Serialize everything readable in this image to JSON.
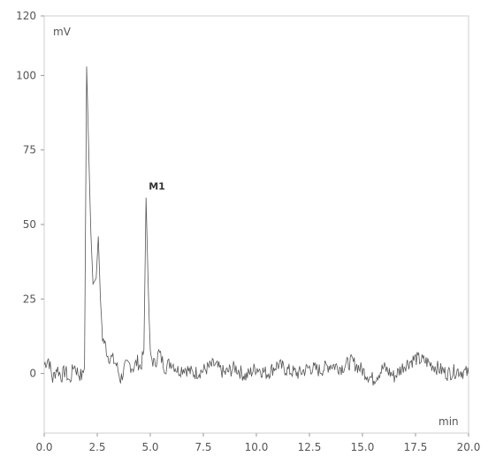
{
  "chart_data": {
    "type": "line",
    "ylabel": "mV",
    "xlabel": "min",
    "xlim": [
      0,
      20
    ],
    "ylim": [
      -20,
      120
    ],
    "x_ticks": [
      "0.0",
      "2.5",
      "5.0",
      "7.5",
      "10.0",
      "12.5",
      "15.0",
      "17.5",
      "20.0"
    ],
    "y_ticks": [
      "0",
      "25",
      "50",
      "75",
      "100",
      "120"
    ],
    "grid": false,
    "line_color": "#555555",
    "frame_color": "#cfcfcf",
    "annotations": [
      {
        "text": "M1",
        "x": 4.8,
        "y": 60
      }
    ],
    "series": [
      {
        "points": [
          [
            0.0,
            3
          ],
          [
            0.2,
            5
          ],
          [
            0.4,
            -2
          ],
          [
            0.6,
            2
          ],
          [
            0.8,
            -1
          ],
          [
            1.0,
            1
          ],
          [
            1.2,
            -3
          ],
          [
            1.4,
            3
          ],
          [
            1.6,
            0
          ],
          [
            1.8,
            -1
          ],
          [
            1.9,
            2
          ],
          [
            2.0,
            103
          ],
          [
            2.15,
            60
          ],
          [
            2.2,
            47
          ],
          [
            2.3,
            30
          ],
          [
            2.45,
            32
          ],
          [
            2.55,
            46
          ],
          [
            2.65,
            25
          ],
          [
            2.75,
            12
          ],
          [
            2.9,
            9
          ],
          [
            3.0,
            6
          ],
          [
            3.2,
            5
          ],
          [
            3.4,
            3
          ],
          [
            3.6,
            -2
          ],
          [
            3.8,
            2
          ],
          [
            4.0,
            3
          ],
          [
            4.2,
            2
          ],
          [
            4.4,
            4
          ],
          [
            4.55,
            2
          ],
          [
            4.7,
            8
          ],
          [
            4.8,
            59
          ],
          [
            4.9,
            30
          ],
          [
            5.0,
            6
          ],
          [
            5.2,
            3
          ],
          [
            5.4,
            7
          ],
          [
            5.7,
            2
          ],
          [
            6.0,
            4
          ],
          [
            6.3,
            1
          ],
          [
            6.6,
            2
          ],
          [
            7.0,
            0
          ],
          [
            7.5,
            1
          ],
          [
            8.0,
            3
          ],
          [
            8.5,
            0
          ],
          [
            9.0,
            2
          ],
          [
            9.5,
            -1
          ],
          [
            10.0,
            2
          ],
          [
            10.5,
            0
          ],
          [
            11.0,
            3
          ],
          [
            11.5,
            1
          ],
          [
            12.0,
            0
          ],
          [
            12.5,
            2
          ],
          [
            13.0,
            1
          ],
          [
            13.5,
            3
          ],
          [
            14.0,
            2
          ],
          [
            14.5,
            4
          ],
          [
            15.0,
            1
          ],
          [
            15.5,
            -2
          ],
          [
            16.0,
            2
          ],
          [
            16.5,
            -1
          ],
          [
            17.0,
            3
          ],
          [
            17.5,
            5
          ],
          [
            18.0,
            4
          ],
          [
            18.5,
            2
          ],
          [
            19.0,
            0
          ],
          [
            19.5,
            1
          ],
          [
            20.0,
            0
          ]
        ]
      }
    ]
  }
}
